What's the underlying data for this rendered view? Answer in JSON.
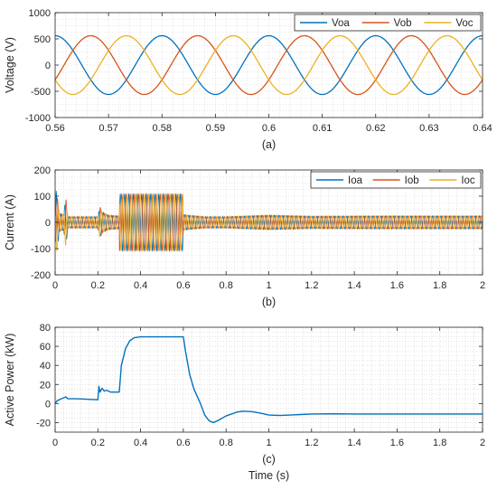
{
  "chart_data": [
    {
      "type": "line",
      "caption": "(a)",
      "xlabel": "",
      "ylabel": "Voltage (V)",
      "xlim": [
        0.56,
        0.64
      ],
      "ylim": [
        -1000,
        1000
      ],
      "xticks": [
        0.56,
        0.57,
        0.58,
        0.59,
        0.6,
        0.61,
        0.62,
        0.63,
        0.64
      ],
      "yticks": [
        -1000,
        -500,
        0,
        500,
        1000
      ],
      "xtick_labels": [
        "0.56",
        "0.57",
        "0.58",
        "0.59",
        "0.6",
        "0.61",
        "0.62",
        "0.63",
        "0.64"
      ],
      "ytick_labels": [
        "-1000",
        "-500",
        "0",
        "500",
        "1000"
      ],
      "grid": "minor dotted",
      "legend": "top-right",
      "waveform": {
        "kind": "three-phase sinusoid",
        "amplitude": 560,
        "frequency_hz": 50
      },
      "series": [
        {
          "name": "Voa",
          "color": "#0072BD",
          "phase_deg": 90
        },
        {
          "name": "Vob",
          "color": "#D95319",
          "phase_deg": -30
        },
        {
          "name": "Voc",
          "color": "#EDB120",
          "phase_deg": 210
        }
      ]
    },
    {
      "type": "line",
      "caption": "(b)",
      "xlabel": "",
      "ylabel": "Current (A)",
      "xlim": [
        0,
        2
      ],
      "ylim": [
        -200,
        200
      ],
      "xticks": [
        0,
        0.2,
        0.4,
        0.6,
        0.8,
        1,
        1.2,
        1.4,
        1.6,
        1.8,
        2
      ],
      "yticks": [
        -200,
        -100,
        0,
        100,
        200
      ],
      "xtick_labels": [
        "0",
        "0.2",
        "0.4",
        "0.6",
        "0.8",
        "1",
        "1.2",
        "1.4",
        "1.6",
        "1.8",
        "2"
      ],
      "ytick_labels": [
        "-200",
        "-100",
        "0",
        "100",
        "200"
      ],
      "grid": "minor dotted",
      "legend": "top-right",
      "series": [
        {
          "name": "Ioa",
          "color": "#0072BD"
        },
        {
          "name": "Iob",
          "color": "#D95319"
        },
        {
          "name": "Ioc",
          "color": "#EDB120"
        }
      ],
      "envelope": {
        "x": [
          0,
          0.005,
          0.01,
          0.02,
          0.04,
          0.05,
          0.06,
          0.1,
          0.2,
          0.21,
          0.22,
          0.25,
          0.3,
          0.301,
          0.4,
          0.5,
          0.598,
          0.6,
          0.62,
          0.7,
          0.8,
          1.0,
          1.2,
          1.5,
          2.0
        ],
        "amplitude": [
          10,
          120,
          100,
          35,
          30,
          95,
          22,
          22,
          22,
          60,
          40,
          28,
          25,
          108,
          108,
          108,
          108,
          30,
          28,
          22,
          22,
          28,
          24,
          25,
          25
        ]
      }
    },
    {
      "type": "line",
      "caption": "(c)",
      "xlabel": "Time (s)",
      "ylabel": "Active Power (kW)",
      "xlim": [
        0,
        2
      ],
      "ylim": [
        -30,
        80
      ],
      "xticks": [
        0,
        0.2,
        0.4,
        0.6,
        0.8,
        1,
        1.2,
        1.4,
        1.6,
        1.8,
        2
      ],
      "yticks": [
        -20,
        0,
        20,
        40,
        60,
        80
      ],
      "xtick_labels": [
        "0",
        "0.2",
        "0.4",
        "0.6",
        "0.8",
        "1",
        "1.2",
        "1.4",
        "1.6",
        "1.8",
        "2"
      ],
      "ytick_labels": [
        "-20",
        "0",
        "20",
        "40",
        "60",
        "80"
      ],
      "grid": "minor dotted",
      "series": [
        {
          "color": "#0072BD",
          "x": [
            0,
            0.01,
            0.02,
            0.04,
            0.05,
            0.06,
            0.1,
            0.2,
            0.205,
            0.21,
            0.22,
            0.23,
            0.24,
            0.26,
            0.3,
            0.31,
            0.33,
            0.35,
            0.37,
            0.4,
            0.45,
            0.5,
            0.55,
            0.6,
            0.61,
            0.63,
            0.65,
            0.68,
            0.7,
            0.72,
            0.74,
            0.76,
            0.8,
            0.85,
            0.88,
            0.92,
            0.96,
            1.0,
            1.05,
            1.1,
            1.15,
            1.2,
            1.3,
            1.4,
            1.5,
            1.6,
            1.8,
            2.0
          ],
          "y": [
            0,
            3,
            4,
            6,
            7,
            5,
            5,
            4,
            18,
            12,
            16,
            13,
            14,
            12,
            12,
            40,
            58,
            66,
            69,
            70,
            70,
            70,
            70,
            70,
            55,
            30,
            15,
            0,
            -12,
            -18,
            -20,
            -18,
            -13,
            -9,
            -8,
            -8.5,
            -10,
            -12,
            -12.5,
            -12,
            -11.5,
            -11,
            -10.8,
            -11,
            -11,
            -11,
            -11,
            -11
          ]
        }
      ]
    }
  ]
}
